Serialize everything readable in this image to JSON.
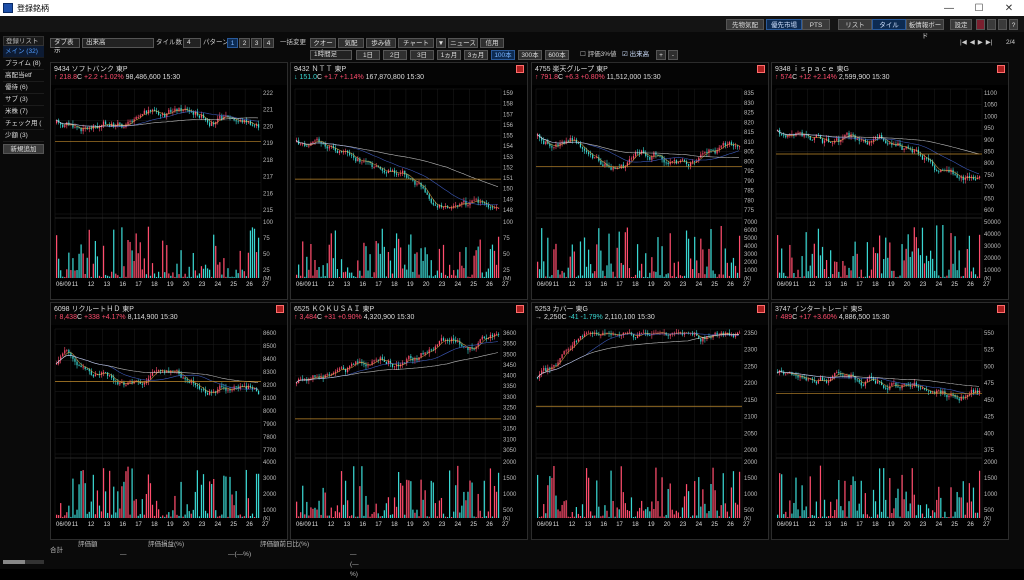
{
  "window": {
    "title": "登録銘柄",
    "minimize": "—",
    "maximize": "☐",
    "close": "✕"
  },
  "topbar": {
    "sor_label": "先物気配",
    "market_label": "優先市場",
    "pts_label": "PTS",
    "list_label": "リスト",
    "tile_label": "タイル",
    "board_label": "板情報ボード",
    "settings_label": "設定",
    "page_label": "2/4",
    "nav": [
      "|◀",
      "◀",
      "▶",
      "▶|"
    ]
  },
  "sidebar": {
    "header": "登録リスト",
    "items": [
      {
        "label": "メイン (32)",
        "active": true
      },
      {
        "label": "プライム (8)",
        "active": false
      },
      {
        "label": "高配当etf",
        "active": false
      },
      {
        "label": "優待 (6)",
        "active": false
      },
      {
        "label": "サブ (3)",
        "active": false
      },
      {
        "label": "米株 (7)",
        "active": false
      },
      {
        "label": "チェック用 (",
        "active": false
      },
      {
        "label": "少額 (3)",
        "active": false
      }
    ],
    "add_button": "新規追加"
  },
  "toolbar": {
    "tab_label": "タブ表示",
    "volume_select": "出来高",
    "tile_count_label": "タイル数",
    "tile_count": "4",
    "pattern_label": "パターン",
    "patterns": [
      "1",
      "2",
      "3",
      "4"
    ],
    "bulk_change": "一括変更",
    "buttons": [
      "クオート",
      "気配",
      "歩み値",
      "チャート",
      "▼",
      "ニュース",
      "信用"
    ],
    "interval_select": "1時間足",
    "periods": [
      "1日",
      "2日",
      "3日",
      "1ヵ月",
      "3ヵ月",
      "100本",
      "300本",
      "600本"
    ],
    "active_period": "100本",
    "checkbox_ratio": "評価3%値",
    "checkbox_volume": "出来高",
    "zoom_in": "+",
    "zoom_out": "-"
  },
  "colors": {
    "up": "#ff4d6d",
    "down": "#3ad7d2",
    "grid": "#1e1e1e",
    "ma1": "#e8b04b",
    "ma2": "#4b6fe8",
    "ma3": "#e8e8e8",
    "ref": "#c08a2c"
  },
  "footer": {
    "label": "合計",
    "col1": "評価額",
    "col2": "評価損益(%)",
    "col3": "評価額前日比(%)",
    "v1": "—",
    "v2": "—(—%)",
    "v3": "—(—%)"
  },
  "panels": [
    {
      "code": "9434",
      "name": "ソフトバンク",
      "market": "東P",
      "dir": "up",
      "price": "218.8",
      "flag": "C",
      "change": "+2.2 +1.02%",
      "volume": "98,486,600",
      "time": "15:30",
      "alert": false,
      "yticks": [
        "222",
        "221",
        "220",
        "219",
        "218",
        "217",
        "216",
        "215"
      ],
      "vticks": [
        "100",
        "75",
        "50",
        "25"
      ],
      "vunit": "(M)",
      "x": [
        "06/09",
        "11",
        "12",
        "13",
        "16",
        "17",
        "18",
        "19",
        "20",
        "23",
        "24",
        "25",
        "26",
        "27"
      ]
    },
    {
      "code": "9432",
      "name": "ＮＴＴ",
      "market": "東P",
      "dir": "down",
      "price": "151.0",
      "flag": "C",
      "change": "+1.7 +1.14%",
      "volume": "167,870,800",
      "time": "15:30",
      "alert": true,
      "yticks": [
        "159",
        "158",
        "157",
        "156",
        "155",
        "154",
        "153",
        "152",
        "151",
        "150",
        "149",
        "148"
      ],
      "vticks": [
        "100",
        "75",
        "50",
        "25"
      ],
      "vunit": "(M)",
      "x": [
        "06/09",
        "11",
        "12",
        "13",
        "16",
        "17",
        "18",
        "19",
        "20",
        "23",
        "24",
        "25",
        "26",
        "27"
      ]
    },
    {
      "code": "4755",
      "name": "楽天グループ",
      "market": "東P",
      "dir": "up",
      "price": "791.8",
      "flag": "C",
      "change": "+6.3 +0.80%",
      "volume": "11,512,000",
      "time": "15:30",
      "alert": true,
      "yticks": [
        "835",
        "830",
        "825",
        "820",
        "815",
        "810",
        "805",
        "800",
        "795",
        "790",
        "785",
        "780",
        "775"
      ],
      "vticks": [
        "7000",
        "6000",
        "5000",
        "4000",
        "3000",
        "2000",
        "1000"
      ],
      "vunit": "(K)",
      "x": [
        "06/09",
        "11",
        "12",
        "13",
        "16",
        "17",
        "18",
        "19",
        "20",
        "23",
        "24",
        "25",
        "26",
        "27"
      ]
    },
    {
      "code": "9348",
      "name": "ｉｓｐａｃｅ",
      "market": "東G",
      "dir": "up",
      "price": "574",
      "flag": "C",
      "change": "+12 +2.14%",
      "volume": "2,599,900",
      "time": "15:30",
      "alert": true,
      "yticks": [
        "1100",
        "1050",
        "1000",
        "950",
        "900",
        "850",
        "800",
        "750",
        "700",
        "650",
        "600"
      ],
      "vticks": [
        "50000",
        "40000",
        "30000",
        "20000",
        "10000"
      ],
      "vunit": "(K)",
      "x": [
        "06/09",
        "11",
        "12",
        "13",
        "16",
        "17",
        "18",
        "19",
        "20",
        "23",
        "24",
        "25",
        "26",
        "27"
      ]
    },
    {
      "code": "6098",
      "name": "リクルートＨＤ",
      "market": "東P",
      "dir": "up",
      "price": "8,438",
      "flag": "C",
      "change": "+338 +4.17%",
      "volume": "8,114,900",
      "time": "15:30",
      "alert": true,
      "yticks": [
        "8600",
        "8500",
        "8400",
        "8300",
        "8200",
        "8100",
        "8000",
        "7900",
        "7800",
        "7700"
      ],
      "vticks": [
        "4000",
        "3000",
        "2000",
        "1000"
      ],
      "vunit": "(K)",
      "x": [
        "06/09",
        "11",
        "12",
        "13",
        "16",
        "17",
        "18",
        "19",
        "20",
        "23",
        "24",
        "25",
        "26",
        "27"
      ]
    },
    {
      "code": "6525",
      "name": "ＫＯＫＵＳＡＩ",
      "market": "東P",
      "dir": "up",
      "price": "3,484",
      "flag": "C",
      "change": "+31 +0.90%",
      "volume": "4,320,900",
      "time": "15:30",
      "alert": true,
      "yticks": [
        "3600",
        "3550",
        "3500",
        "3450",
        "3400",
        "3350",
        "3300",
        "3250",
        "3200",
        "3150",
        "3100",
        "3050"
      ],
      "vticks": [
        "2000",
        "1500",
        "1000",
        "500"
      ],
      "vunit": "(K)",
      "x": [
        "06/09",
        "11",
        "12",
        "13",
        "16",
        "17",
        "18",
        "19",
        "20",
        "23",
        "24",
        "25",
        "26",
        "27"
      ]
    },
    {
      "code": "5253",
      "name": "カバー",
      "market": "東G",
      "dir": "flat",
      "price": "2,250",
      "flag": "C",
      "change": "-41 -1.79%",
      "volume": "2,110,100",
      "time": "15:30",
      "alert": true,
      "yticks": [
        "2350",
        "2300",
        "2250",
        "2200",
        "2150",
        "2100",
        "2050",
        "2000"
      ],
      "vticks": [
        "2000",
        "1500",
        "1000",
        "500"
      ],
      "vunit": "(K)",
      "x": [
        "06/09",
        "11",
        "12",
        "13",
        "16",
        "17",
        "18",
        "19",
        "20",
        "23",
        "24",
        "25",
        "26",
        "27"
      ]
    },
    {
      "code": "3747",
      "name": "インタートレード",
      "market": "東S",
      "dir": "up",
      "price": "489",
      "flag": "C",
      "change": "+17 +3.60%",
      "volume": "4,886,500",
      "time": "15:30",
      "alert": true,
      "yticks": [
        "550",
        "525",
        "500",
        "475",
        "450",
        "425",
        "400",
        "375"
      ],
      "vticks": [
        "2000",
        "1500",
        "1000",
        "500"
      ],
      "vunit": "(K)",
      "x": [
        "06/09",
        "11",
        "12",
        "13",
        "16",
        "17",
        "18",
        "19",
        "20",
        "23",
        "24",
        "25",
        "26",
        "27"
      ]
    }
  ]
}
